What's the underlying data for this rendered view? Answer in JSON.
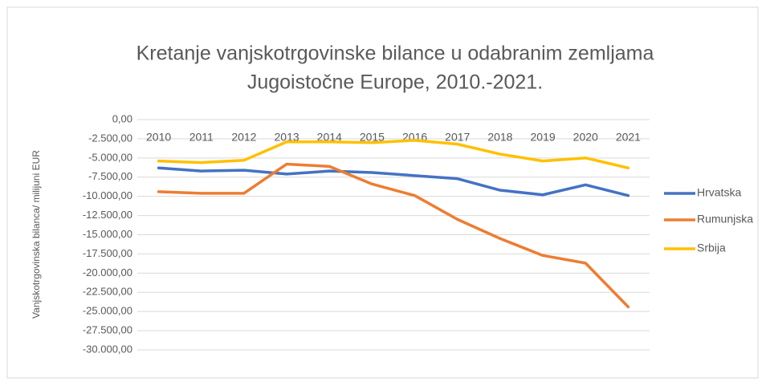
{
  "chart_data": {
    "type": "line",
    "title": [
      "Kretanje vanjskotrgovinske bilance u odabranim zemljama",
      "Jugoistočne Europe, 2010.-2021."
    ],
    "y_label": "Vanjskotrgovinska bilanca/ milijuni EUR",
    "categories": [
      "2010",
      "2011",
      "2012",
      "2013",
      "2014",
      "2015",
      "2016",
      "2017",
      "2018",
      "2019",
      "2020",
      "2021"
    ],
    "series": [
      {
        "name": "Hrvatska",
        "color": "#4472c4",
        "values": [
          -6300,
          -6700,
          -6600,
          -7100,
          -6700,
          -6900,
          -7300,
          -7700,
          -9200,
          -9800,
          -8500,
          -9900
        ]
      },
      {
        "name": "Rumunjska",
        "color": "#ed7d31",
        "values": [
          -9400,
          -9600,
          -9600,
          -5800,
          -6100,
          -8400,
          -9900,
          -13000,
          -15500,
          -17700,
          -18700,
          -24400
        ]
      },
      {
        "name": "Srbija",
        "color": "#ffc000",
        "values": [
          -5400,
          -5600,
          -5300,
          -2900,
          -2900,
          -3000,
          -2700,
          -3200,
          -4500,
          -5400,
          -5000,
          -6300
        ]
      }
    ],
    "ylim": [
      -30000,
      0
    ],
    "yticks": [
      {
        "value": 0,
        "label": "0,00"
      },
      {
        "value": -2500,
        "label": "-2.500,00"
      },
      {
        "value": -5000,
        "label": "-5.000,00"
      },
      {
        "value": -7500,
        "label": "-7.500,00"
      },
      {
        "value": -10000,
        "label": "-10.000,00"
      },
      {
        "value": -12500,
        "label": "-12.500,00"
      },
      {
        "value": -15000,
        "label": "-15.000,00"
      },
      {
        "value": -17500,
        "label": "-17.500,00"
      },
      {
        "value": -20000,
        "label": "-20.000,00"
      },
      {
        "value": -22500,
        "label": "-22.500,00"
      },
      {
        "value": -25000,
        "label": "-25.000,00"
      },
      {
        "value": -27500,
        "label": "-27.500,00"
      },
      {
        "value": -30000,
        "label": "-30.000,00"
      }
    ],
    "grid": true,
    "legend": "right"
  }
}
